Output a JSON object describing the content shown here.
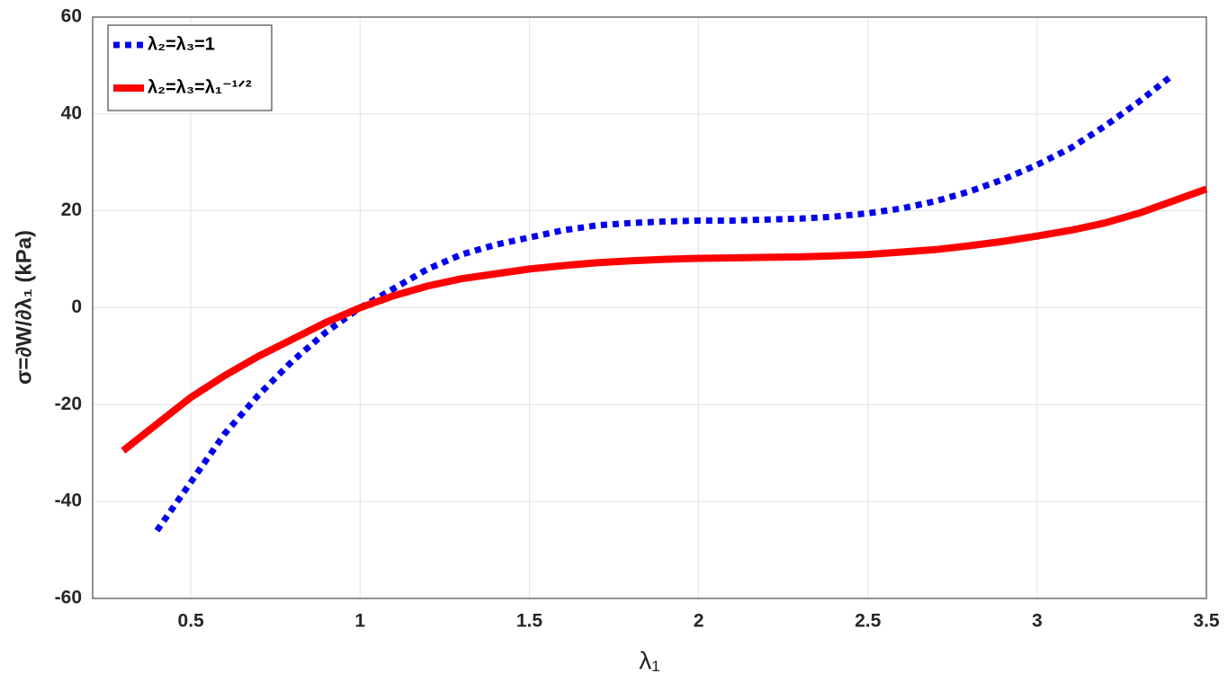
{
  "chart_data": {
    "type": "line",
    "xlabel": "λ₁",
    "ylabel": "σ=∂W/∂λ₁ (kPa)",
    "xlim": [
      0.21,
      3.5
    ],
    "ylim": [
      -60,
      60
    ],
    "xticks": [
      0.5,
      1,
      1.5,
      2,
      2.5,
      3,
      3.5
    ],
    "yticks": [
      -60,
      -40,
      -20,
      0,
      20,
      40,
      60
    ],
    "grid": true,
    "legend": "upper left",
    "series": [
      {
        "name": "λ₂=λ₃=1",
        "color": "#0000ee",
        "style": "dotted",
        "x": [
          0.4,
          0.5,
          0.6,
          0.7,
          0.8,
          0.9,
          1.0,
          1.1,
          1.2,
          1.3,
          1.4,
          1.5,
          1.6,
          1.7,
          1.8,
          1.9,
          2.0,
          2.1,
          2.2,
          2.3,
          2.4,
          2.5,
          2.6,
          2.7,
          2.8,
          2.9,
          3.0,
          3.1,
          3.2,
          3.3,
          3.4
        ],
        "values": [
          -46,
          -36,
          -26,
          -18,
          -11,
          -5,
          0,
          4,
          8,
          11,
          13,
          14.5,
          16,
          17,
          17.5,
          17.8,
          18,
          18,
          18.2,
          18.4,
          18.8,
          19.5,
          20.5,
          22,
          24,
          26.5,
          29.5,
          33,
          37.5,
          42.5,
          48
        ]
      },
      {
        "name": "λ₂=λ₃=λ₁⁻¹ᐟ²",
        "color": "#ff0000",
        "style": "solid",
        "x": [
          0.3,
          0.4,
          0.5,
          0.6,
          0.7,
          0.8,
          0.9,
          1.0,
          1.1,
          1.2,
          1.3,
          1.4,
          1.5,
          1.6,
          1.7,
          1.8,
          1.9,
          2.0,
          2.1,
          2.2,
          2.3,
          2.4,
          2.5,
          2.6,
          2.7,
          2.8,
          2.9,
          3.0,
          3.1,
          3.2,
          3.3,
          3.4,
          3.5
        ],
        "values": [
          -29.5,
          -24,
          -18.5,
          -14,
          -10,
          -6.5,
          -3,
          0,
          2.5,
          4.5,
          6,
          7,
          8,
          8.7,
          9.3,
          9.7,
          10,
          10.2,
          10.3,
          10.4,
          10.5,
          10.7,
          11,
          11.5,
          12,
          12.8,
          13.7,
          14.8,
          16,
          17.5,
          19.5,
          22,
          24.5
        ]
      }
    ]
  }
}
